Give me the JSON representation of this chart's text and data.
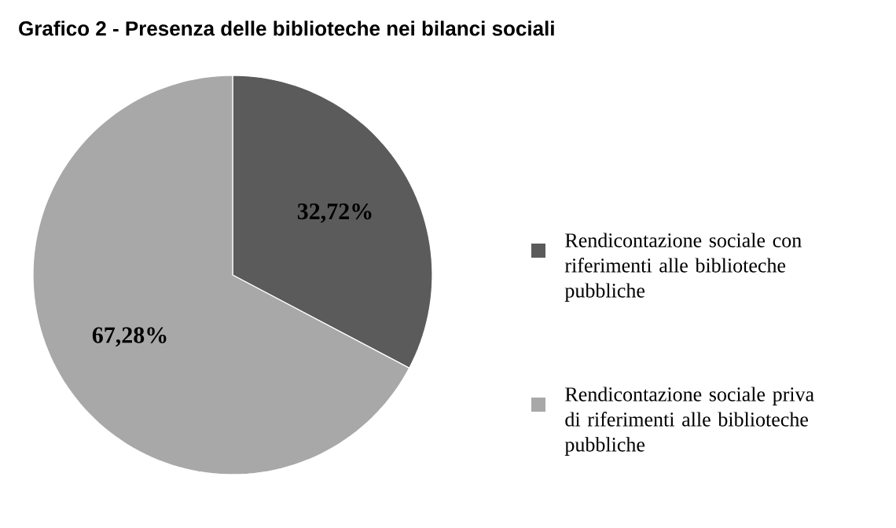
{
  "chart_data": {
    "type": "pie",
    "title": "Grafico 2 - Presenza delle biblioteche nei bilanci sociali",
    "categories": [
      "Rendicontazione sociale con riferimenti alle biblioteche pubbliche",
      "Rendicontazione sociale priva di riferimenti alle biblioteche pubbliche"
    ],
    "values": [
      32.72,
      67.28
    ],
    "value_labels": [
      "32,72%",
      "67,28%"
    ],
    "colors": [
      "#5b5b5b",
      "#a8a8a8"
    ],
    "legend": "right"
  }
}
